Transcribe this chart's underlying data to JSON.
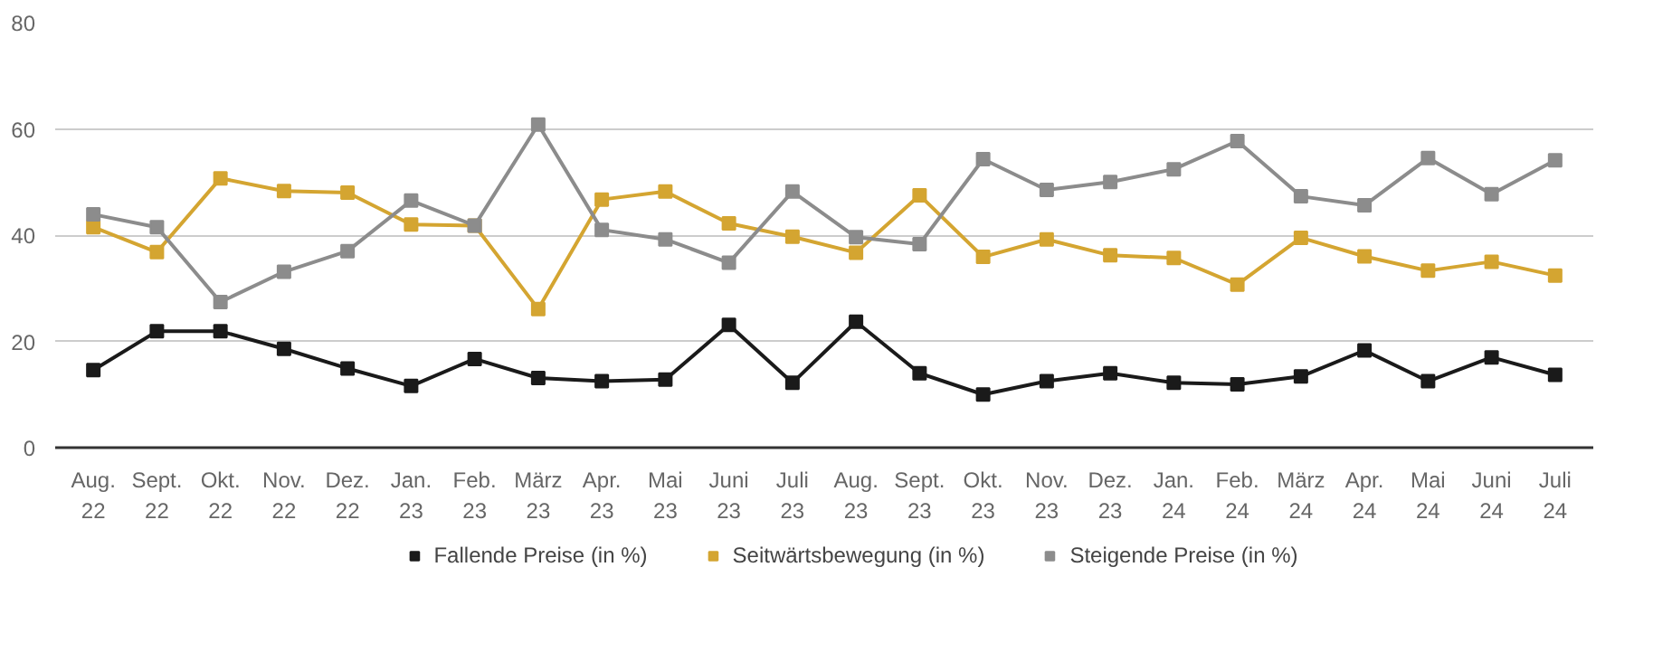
{
  "chart_data": {
    "type": "line",
    "categories": [
      "Aug.\n22",
      "Sept.\n22",
      "Okt.\n22",
      "Nov.\n22",
      "Dez.\n22",
      "Jan.\n23",
      "Feb.\n23",
      "März\n23",
      "Apr.\n23",
      "Mai\n23",
      "Juni\n23",
      "Juli\n23",
      "Aug.\n23",
      "Sept.\n23",
      "Okt.\n23",
      "Nov.\n23",
      "Dez.\n23",
      "Jan.\n24",
      "Feb.\n24",
      "März\n24",
      "Apr.\n24",
      "Mai\n24",
      "Juni\n24",
      "Juli\n24"
    ],
    "series": [
      {
        "name": "Fallende Preise (in %)",
        "color": "#1a1a1a",
        "values": [
          14.6,
          21.9,
          21.9,
          18.6,
          14.9,
          11.6,
          16.7,
          13.1,
          12.5,
          12.8,
          23.1,
          12.2,
          23.7,
          14.0,
          10.0,
          12.5,
          14.0,
          12.2,
          11.9,
          13.4,
          18.3,
          12.5,
          17.0,
          13.7
        ]
      },
      {
        "name": "Seitwärtsbewegung (in %)",
        "color": "#d4a531",
        "values": [
          41.5,
          36.8,
          50.7,
          48.3,
          48.0,
          42.0,
          41.8,
          26.1,
          46.7,
          48.2,
          42.2,
          39.7,
          36.7,
          47.5,
          35.9,
          39.2,
          36.2,
          35.7,
          30.7,
          39.5,
          36.0,
          33.3,
          35.0,
          32.4
        ]
      },
      {
        "name": "Steigende Preise (in %)",
        "color": "#8c8c8c",
        "values": [
          43.9,
          41.5,
          27.4,
          33.1,
          37.0,
          46.5,
          41.8,
          60.8,
          41.0,
          39.2,
          34.8,
          48.2,
          39.6,
          38.3,
          54.3,
          48.5,
          50.0,
          52.4,
          57.7,
          47.3,
          45.6,
          54.5,
          47.7,
          54.1
        ]
      }
    ],
    "ylim": [
      0,
      80
    ],
    "yticks": [
      0,
      20,
      40,
      60,
      80
    ],
    "grid": "y",
    "legend": "bottom",
    "marker": "square",
    "line_style": "solid"
  }
}
